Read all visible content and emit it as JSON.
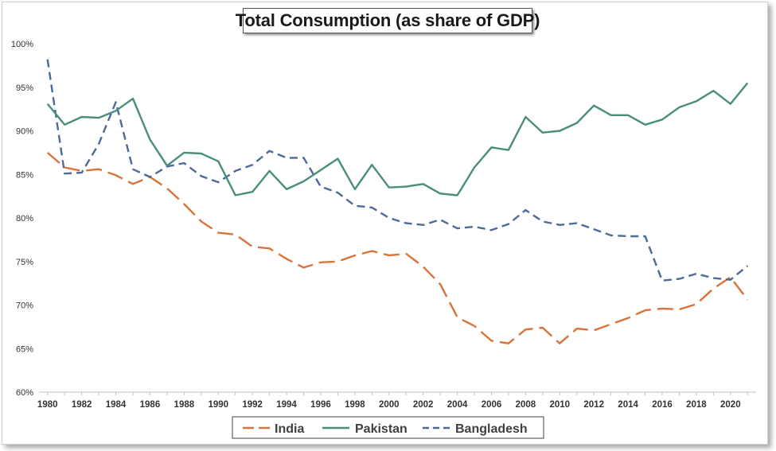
{
  "chart_data": {
    "type": "line",
    "title": "Total Consumption (as share of GDP)",
    "xlabel": "",
    "ylabel": "",
    "ylim": [
      60,
      100
    ],
    "y_ticks": [
      {
        "value": 60,
        "label": "60%"
      },
      {
        "value": 65,
        "label": "65%"
      },
      {
        "value": 70,
        "label": "70%"
      },
      {
        "value": 75,
        "label": "75%"
      },
      {
        "value": 80,
        "label": "80%"
      },
      {
        "value": 85,
        "label": "85%"
      },
      {
        "value": 90,
        "label": "90%"
      },
      {
        "value": 95,
        "label": "95%"
      },
      {
        "value": 100,
        "label": "100%"
      }
    ],
    "x_ticks": [
      "1980",
      "1982",
      "1984",
      "1986",
      "1988",
      "1990",
      "1992",
      "1994",
      "1996",
      "1998",
      "2000",
      "2002",
      "2004",
      "2006",
      "2008",
      "2010",
      "2012",
      "2014",
      "2016",
      "2018",
      "2020"
    ],
    "x": [
      1980,
      1981,
      1982,
      1983,
      1984,
      1985,
      1986,
      1987,
      1988,
      1989,
      1990,
      1991,
      1992,
      1993,
      1994,
      1995,
      1996,
      1997,
      1998,
      1999,
      2000,
      2001,
      2002,
      2003,
      2004,
      2005,
      2006,
      2007,
      2008,
      2009,
      2010,
      2011,
      2012,
      2013,
      2014,
      2015,
      2016,
      2017,
      2018,
      2019,
      2020,
      2021
    ],
    "grid": false,
    "legend_position": "bottom",
    "series": [
      {
        "name": "India",
        "color": "#D9733A",
        "style": "long-dash",
        "values": [
          87.5,
          85.8,
          85.4,
          85.6,
          84.9,
          83.9,
          84.7,
          83.4,
          81.6,
          79.6,
          78.3,
          78.1,
          76.7,
          76.5,
          75.3,
          74.3,
          74.9,
          75.0,
          75.7,
          76.2,
          75.7,
          75.9,
          74.4,
          72.4,
          68.6,
          67.6,
          65.9,
          65.6,
          67.2,
          67.4,
          65.6,
          67.3,
          67.1,
          67.8,
          68.5,
          69.4,
          69.6,
          69.5,
          70.1,
          71.9,
          73.2,
          70.6
        ]
      },
      {
        "name": "Pakistan",
        "color": "#4A8D7B",
        "style": "solid",
        "values": [
          93.1,
          90.7,
          91.6,
          91.5,
          92.3,
          93.7,
          89.0,
          86.0,
          87.5,
          87.4,
          86.5,
          82.6,
          83.0,
          85.4,
          83.3,
          84.2,
          85.5,
          86.8,
          83.3,
          86.1,
          83.5,
          83.6,
          83.9,
          82.8,
          82.6,
          85.8,
          88.1,
          87.8,
          91.6,
          89.8,
          90.0,
          90.9,
          92.9,
          91.8,
          91.8,
          90.7,
          91.3,
          92.7,
          93.4,
          94.6,
          93.1,
          95.5
        ]
      },
      {
        "name": "Bangladesh",
        "color": "#4C6A9A",
        "style": "dash",
        "values": [
          98.2,
          85.1,
          85.2,
          88.5,
          93.3,
          85.6,
          84.7,
          85.9,
          86.3,
          84.8,
          84.1,
          85.4,
          86.1,
          87.7,
          86.9,
          86.9,
          83.6,
          82.9,
          81.4,
          81.2,
          80.0,
          79.4,
          79.2,
          79.8,
          78.8,
          79.0,
          78.6,
          79.3,
          80.9,
          79.6,
          79.2,
          79.4,
          78.7,
          78.0,
          77.9,
          77.9,
          72.8,
          73.0,
          73.6,
          73.1,
          72.9,
          74.5
        ]
      }
    ]
  }
}
